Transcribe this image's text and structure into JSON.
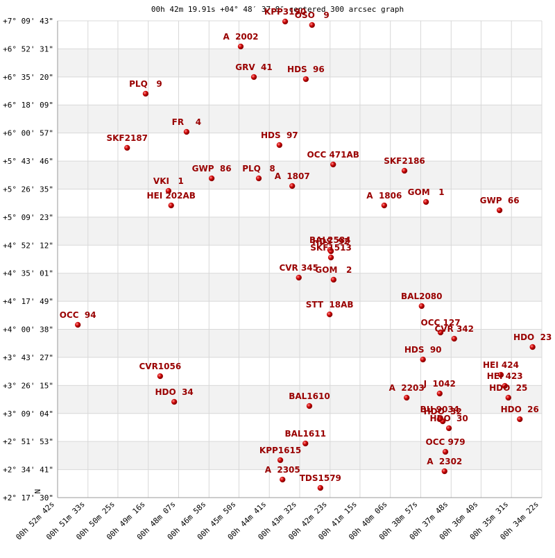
{
  "chart_data": {
    "type": "scatter",
    "title": "00h 42m 19.91s +04° 48′ 37.8″ centered 300 arcsec graph",
    "compass": "N",
    "grid": true,
    "color": "#cc0000",
    "label_color": "#990000",
    "xlim": [
      3162,
      2062
    ],
    "xticks": [
      {
        "value": 3162,
        "label": "00h 52m 42s"
      },
      {
        "value": 3093,
        "label": "00h 51m 33s"
      },
      {
        "value": 3025,
        "label": "00h 50m 25s"
      },
      {
        "value": 2956,
        "label": "00h 49m 16s"
      },
      {
        "value": 2887,
        "label": "00h 48m 07s"
      },
      {
        "value": 2818,
        "label": "00h 46m 58s"
      },
      {
        "value": 2750,
        "label": "00h 45m 50s"
      },
      {
        "value": 2681,
        "label": "00h 44m 41s"
      },
      {
        "value": 2612,
        "label": "00h 43m 32s"
      },
      {
        "value": 2543,
        "label": "00h 42m 23s"
      },
      {
        "value": 2475,
        "label": "00h 41m 15s"
      },
      {
        "value": 2406,
        "label": "00h 40m 06s"
      },
      {
        "value": 2337,
        "label": "00h 38m 57s"
      },
      {
        "value": 2268,
        "label": "00h 37m 48s"
      },
      {
        "value": 2200,
        "label": "00h 36m 40s"
      },
      {
        "value": 2131,
        "label": "00h 35m 31s"
      },
      {
        "value": 2062,
        "label": "00h 34m 22s"
      }
    ],
    "ylim": [
      8250,
      25783
    ],
    "yticks": [
      {
        "value": 25783,
        "label": "+7° 09' 43\""
      },
      {
        "value": 24751,
        "label": "+6° 52' 31\""
      },
      {
        "value": 23720,
        "label": "+6° 35' 20\""
      },
      {
        "value": 22689,
        "label": "+6° 18' 09\""
      },
      {
        "value": 21657,
        "label": "+6° 00' 57\""
      },
      {
        "value": 20626,
        "label": "+5° 43' 46\""
      },
      {
        "value": 19595,
        "label": "+5° 26' 35\""
      },
      {
        "value": 18563,
        "label": "+5° 09' 23\""
      },
      {
        "value": 17532,
        "label": "+4° 52' 12\""
      },
      {
        "value": 16501,
        "label": "+4° 35' 01\""
      },
      {
        "value": 15469,
        "label": "+4° 17' 49\""
      },
      {
        "value": 14438,
        "label": "+4° 00' 38\""
      },
      {
        "value": 13407,
        "label": "+3° 43' 27\""
      },
      {
        "value": 12375,
        "label": "+3° 26' 15\""
      },
      {
        "value": 11344,
        "label": "+3° 09' 04\""
      },
      {
        "value": 10313,
        "label": "+2° 51' 53\""
      },
      {
        "value": 9281,
        "label": "+2° 34' 41\""
      },
      {
        "value": 8250,
        "label": "+2° 17' 30\""
      }
    ],
    "labels": [
      "KPP3190",
      "OSO   9",
      "A  2002",
      "GRV  41",
      "HDS  96",
      "PLQ   9",
      "FR    4",
      "HDS  97",
      "SKF2187",
      "OCC 471AB",
      "SKF2186",
      "GWP  86",
      "PLQ   8",
      "VKI   1",
      "A  1807",
      "GOM   1",
      "A  1806",
      "HEI 202AB",
      "GWP  66",
      "BAL2584",
      "HDS  92",
      "SKF1513",
      "CVR 345",
      "GOM   2",
      "BAL2080",
      "STT  18AB",
      "OCC  94",
      "OCC 127",
      "CVR 342",
      "HDO  23",
      "HDS  90",
      "HEI 424",
      "CVR1056",
      "HEI 423",
      "J  1042",
      "HDO  25",
      "A  2203",
      "HDO  34",
      "BAL1610",
      "BU 9034",
      "HDO  32",
      "HDO  30",
      "HDO  26",
      "BAL1611",
      "OCC 979",
      "KPP1615",
      "A  2302",
      "A  2305",
      "TDS1579"
    ],
    "x": [
      2645,
      2584,
      2746,
      2716,
      2598,
      2962,
      2869,
      2658,
      3004,
      2536,
      2374,
      2812,
      2705,
      2910,
      2629,
      2325,
      2420,
      2904,
      2158,
      2543,
      2541,
      2541,
      2614,
      2535,
      2335,
      2544,
      3116,
      2292,
      2261,
      2083,
      2332,
      2155,
      2929,
      2146,
      2294,
      2138,
      2369,
      2897,
      2590,
      2294,
      2287,
      2273,
      2112,
      2599,
      2281,
      2656,
      2283,
      2651,
      2565
    ],
    "y": [
      25757,
      25630,
      24839,
      23716,
      23639,
      23103,
      21700,
      21215,
      21113,
      20500,
      20270,
      19990,
      19990,
      19530,
      19709,
      19122,
      18994,
      18994,
      18816,
      17362,
      17310,
      17080,
      16340,
      16264,
      15294,
      14988,
      14605,
      14324,
      14094,
      13788,
      13329,
      12767,
      12716,
      12359,
      12078,
      11925,
      11925,
      11772,
      11619,
      11134,
      11057,
      10802,
      11134,
      10241,
      9934,
      9628,
      9220,
      8914,
      8607
    ]
  }
}
